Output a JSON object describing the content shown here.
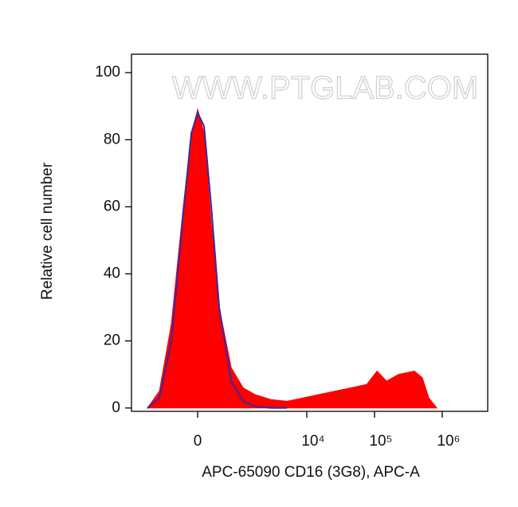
{
  "chart_data": {
    "type": "histogram-overlay",
    "xlabel": "APC-65090 CD16 (3G8), APC-A",
    "ylabel": "Relative cell number",
    "watermark": "WWW.PTGLAB.COM",
    "xscale": "biexponential",
    "xlim": [
      -2300,
      4700000
    ],
    "ylim": [
      -1,
      105.5
    ],
    "xticks": [
      0,
      {
        "value": 10000,
        "label": "10⁴"
      },
      {
        "value": 100000,
        "label": "10⁵"
      },
      {
        "value": 1000000,
        "label": "10⁶"
      }
    ],
    "yticks": [
      0,
      20,
      40,
      60,
      80,
      100
    ],
    "series": [
      {
        "color": "#ff0000",
        "fill": true,
        "x": [
          -1310,
          -835,
          -500,
          -250,
          -107,
          0,
          107,
          234,
          392,
          686,
          1100,
          1690,
          2950,
          5100,
          8770,
          15000,
          25900,
          44500,
          76600,
          109000,
          151000,
          226000,
          389000,
          510000,
          634000,
          831000
        ],
        "values": [
          0,
          5,
          25,
          60,
          82,
          89,
          82,
          55,
          30,
          12,
          6,
          4,
          2.5,
          2,
          3,
          4,
          5,
          6,
          7,
          11,
          8,
          10,
          11,
          9,
          3,
          0
        ]
      },
      {
        "color": "#3b2a9a",
        "fill": false,
        "x": [
          -1310,
          -835,
          -500,
          -250,
          -107,
          0,
          107,
          234,
          392,
          686,
          1100,
          1690,
          2950,
          5100
        ],
        "values": [
          0,
          3,
          20,
          58,
          82,
          88,
          84,
          60,
          30,
          8,
          2,
          0.5,
          0,
          0
        ]
      }
    ]
  }
}
